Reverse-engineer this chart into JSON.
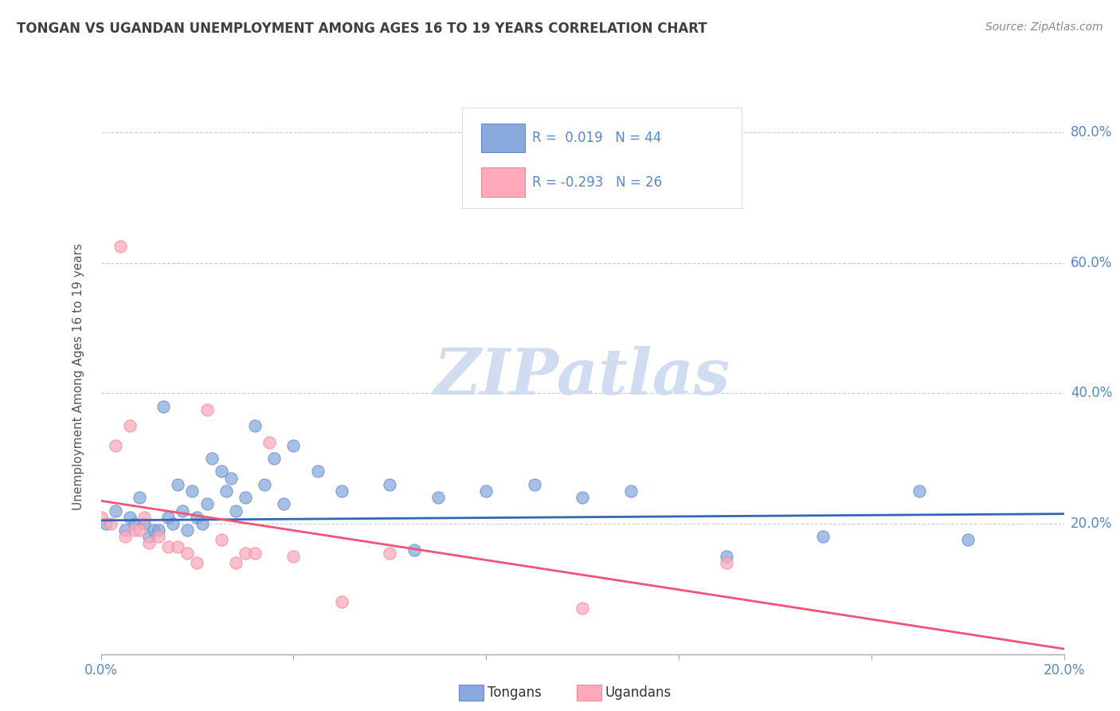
{
  "title": "TONGAN VS UGANDAN UNEMPLOYMENT AMONG AGES 16 TO 19 YEARS CORRELATION CHART",
  "source": "Source: ZipAtlas.com",
  "ylabel": "Unemployment Among Ages 16 to 19 years",
  "xlim": [
    0.0,
    0.2
  ],
  "ylim": [
    0.0,
    0.85
  ],
  "tonga_color": "#88AADD",
  "tonga_edge_color": "#6688CC",
  "uganda_color": "#FFAABB",
  "uganda_edge_color": "#EE8899",
  "tonga_line_color": "#3366BB",
  "uganda_line_color": "#EE5577",
  "watermark_color": "#D0DCF0",
  "watermark": "ZIPatlas",
  "bg_color": "#FFFFFF",
  "grid_color": "#CCCCCC",
  "title_color": "#404040",
  "axis_label_color": "#5588CC",
  "scatter_size": 120,
  "tonga_scatter_x": [
    0.001,
    0.003,
    0.005,
    0.006,
    0.007,
    0.008,
    0.009,
    0.01,
    0.011,
    0.012,
    0.013,
    0.014,
    0.015,
    0.016,
    0.017,
    0.018,
    0.019,
    0.02,
    0.021,
    0.022,
    0.023,
    0.025,
    0.026,
    0.027,
    0.028,
    0.03,
    0.032,
    0.034,
    0.036,
    0.038,
    0.04,
    0.045,
    0.05,
    0.06,
    0.065,
    0.07,
    0.08,
    0.09,
    0.1,
    0.11,
    0.13,
    0.15,
    0.17,
    0.18
  ],
  "tonga_scatter_y": [
    0.2,
    0.22,
    0.19,
    0.21,
    0.2,
    0.24,
    0.2,
    0.18,
    0.19,
    0.19,
    0.38,
    0.21,
    0.2,
    0.26,
    0.22,
    0.19,
    0.25,
    0.21,
    0.2,
    0.23,
    0.3,
    0.28,
    0.25,
    0.27,
    0.22,
    0.24,
    0.35,
    0.26,
    0.3,
    0.23,
    0.32,
    0.28,
    0.25,
    0.26,
    0.16,
    0.24,
    0.25,
    0.26,
    0.24,
    0.25,
    0.15,
    0.18,
    0.25,
    0.175
  ],
  "uganda_scatter_x": [
    0.0,
    0.002,
    0.003,
    0.004,
    0.005,
    0.006,
    0.007,
    0.008,
    0.009,
    0.01,
    0.012,
    0.014,
    0.016,
    0.018,
    0.02,
    0.022,
    0.025,
    0.028,
    0.03,
    0.032,
    0.035,
    0.04,
    0.05,
    0.06,
    0.1,
    0.13
  ],
  "uganda_scatter_y": [
    0.21,
    0.2,
    0.32,
    0.625,
    0.18,
    0.35,
    0.19,
    0.19,
    0.21,
    0.17,
    0.18,
    0.165,
    0.165,
    0.155,
    0.14,
    0.375,
    0.175,
    0.14,
    0.155,
    0.155,
    0.325,
    0.15,
    0.08,
    0.155,
    0.07,
    0.14
  ],
  "tonga_trend_x": [
    0.0,
    0.2
  ],
  "tonga_trend_y": [
    0.205,
    0.215
  ],
  "uganda_trend_x": [
    0.0,
    0.2
  ],
  "uganda_trend_y": [
    0.235,
    0.008
  ]
}
